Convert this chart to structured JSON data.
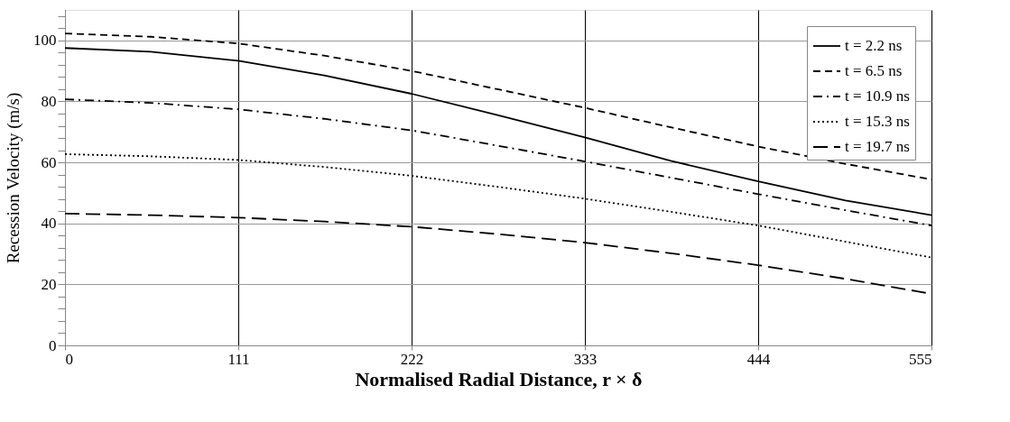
{
  "chart_data": {
    "type": "line",
    "xlabel": "Normalised Radial Distance, r × δ",
    "ylabel": "Recession Velocity (m/s)",
    "x": [
      0,
      55,
      111,
      166,
      222,
      277,
      333,
      388,
      444,
      500,
      555
    ],
    "series": [
      {
        "name": "t = 2.2 ns",
        "color": "#000000",
        "line_style": "solid",
        "values": [
          97.5,
          96.3,
          93.3,
          88.5,
          82.5,
          75.5,
          68.2,
          60.5,
          53.8,
          47.5,
          42.7
        ]
      },
      {
        "name": "t = 6.5 ns",
        "color": "#000000",
        "line_style": "dashed",
        "values": [
          102.3,
          101.2,
          99,
          95,
          90,
          84,
          77.9,
          71.5,
          65.2,
          59.5,
          54.4
        ]
      },
      {
        "name": "t = 10.9 ns",
        "color": "#000000",
        "line_style": "dashdot",
        "values": [
          80.7,
          79.5,
          77.4,
          74.3,
          70.5,
          65.5,
          60.3,
          55,
          49.6,
          44.3,
          39.3
        ]
      },
      {
        "name": "t = 15.3 ns",
        "color": "#000000",
        "line_style": "dotted",
        "values": [
          62.7,
          62,
          60.8,
          58.5,
          55.6,
          52,
          48.1,
          43.8,
          39.3,
          34,
          28.8
        ]
      },
      {
        "name": "t = 19.7 ns",
        "color": "#000000",
        "line_style": "longdash",
        "values": [
          43.2,
          42.7,
          41.9,
          40.6,
          38.9,
          36.5,
          33.7,
          30.2,
          26.3,
          21.8,
          16.9
        ]
      }
    ],
    "xlim": [
      0,
      555
    ],
    "xticks": [
      0,
      111,
      222,
      333,
      444,
      555
    ],
    "ylim": [
      0,
      110
    ],
    "yticks": [
      0,
      {
        "value": 4,
        "label": null
      },
      {
        "value": 8,
        "label": null
      },
      {
        "value": 12,
        "label": null
      },
      {
        "value": 16,
        "label": null
      },
      20,
      {
        "value": 24,
        "label": null
      },
      {
        "value": 28,
        "label": null
      },
      {
        "value": 32,
        "label": null
      },
      {
        "value": 36,
        "label": null
      },
      40,
      {
        "value": 44,
        "label": null
      },
      {
        "value": 48,
        "label": null
      },
      {
        "value": 52,
        "label": null
      },
      {
        "value": 56,
        "label": null
      },
      60,
      {
        "value": 64,
        "label": null
      },
      {
        "value": 68,
        "label": null
      },
      {
        "value": 72,
        "label": null
      },
      {
        "value": 76,
        "label": null
      },
      80,
      {
        "value": 84,
        "label": null
      },
      {
        "value": 88,
        "label": null
      },
      {
        "value": 92,
        "label": null
      },
      {
        "value": 96,
        "label": null
      },
      100,
      {
        "value": 104,
        "label": null
      },
      {
        "value": 108,
        "label": null
      }
    ],
    "grid": true,
    "legend": "top right",
    "marker": "none"
  }
}
